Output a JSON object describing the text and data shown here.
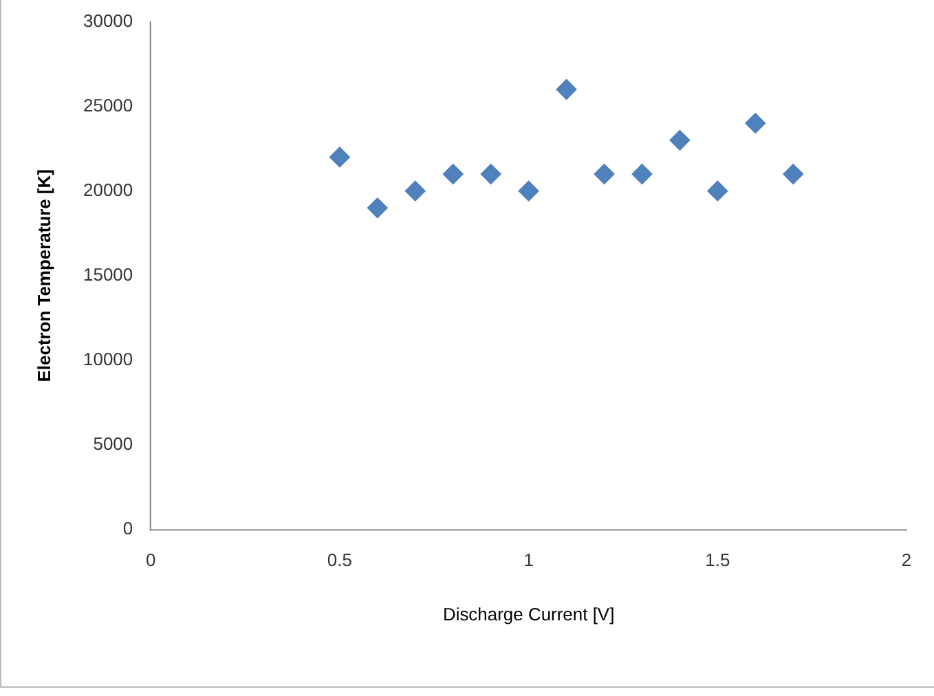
{
  "chart_data": {
    "type": "scatter",
    "xlabel": "Discharge Current [V]",
    "ylabel": "Electron Temperature [K]",
    "x": [
      0.5,
      0.6,
      0.7,
      0.8,
      0.9,
      1.0,
      1.1,
      1.2,
      1.3,
      1.4,
      1.5,
      1.6,
      1.7
    ],
    "series": [
      {
        "color": "#4f81bd",
        "values": [
          22000,
          19000,
          20000,
          21000,
          21000,
          20000,
          26000,
          21000,
          21000,
          23000,
          20000,
          24000,
          21000
        ]
      }
    ],
    "xlim": [
      0,
      2
    ],
    "xticks": [
      0,
      0.5,
      1,
      1.5,
      2
    ],
    "ylim": [
      0,
      30000
    ],
    "yticks": [
      0,
      5000,
      10000,
      15000,
      20000,
      25000,
      30000
    ],
    "grid": false,
    "legend": false,
    "marker": "diamond"
  }
}
